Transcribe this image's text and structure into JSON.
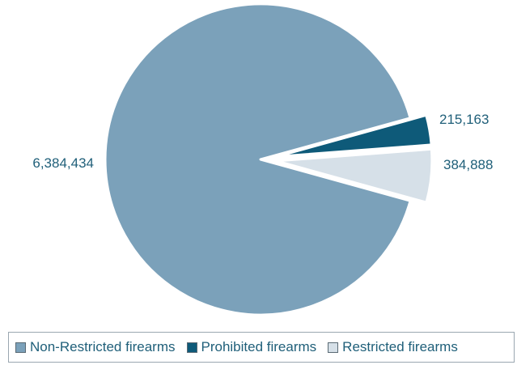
{
  "chart_data": {
    "type": "pie",
    "slices": [
      {
        "label": "Non-Restricted firearms",
        "value": 6384434,
        "value_label": "6,384,434",
        "color": "#7ba1ba",
        "exploded": false
      },
      {
        "label": "Prohibited firearms",
        "value": 215163,
        "value_label": "215,163",
        "color": "#0e5a79",
        "exploded": true
      },
      {
        "label": "Restricted firearms",
        "value": 384888,
        "value_label": "384,888",
        "color": "#d6e0e8",
        "exploded": true
      }
    ],
    "legend_position": "bottom"
  }
}
